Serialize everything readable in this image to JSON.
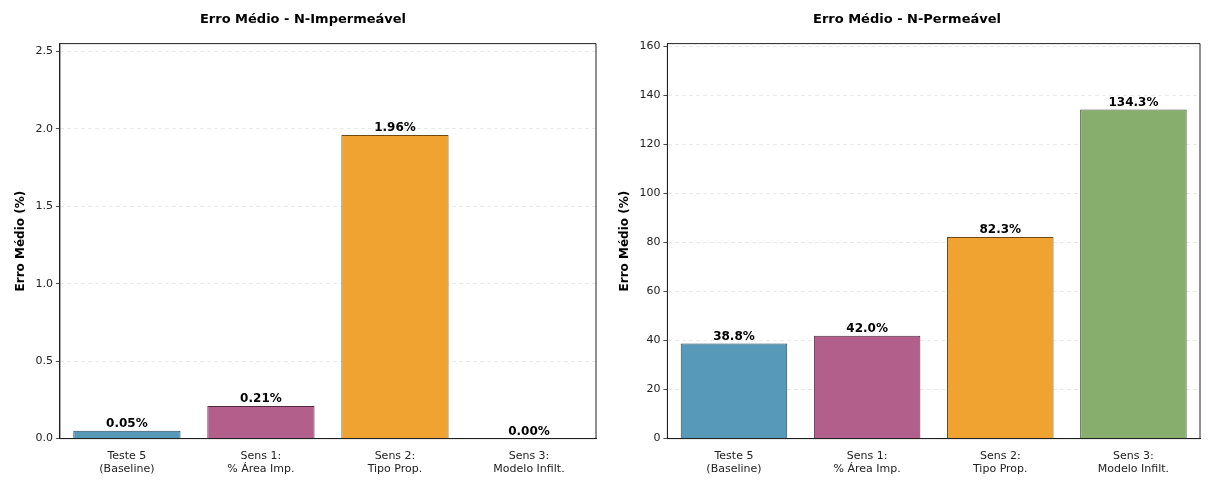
{
  "chart_data": [
    {
      "type": "bar",
      "title": "Erro Médio - N-Impermeável",
      "ylabel": "Erro Médio (%)",
      "categories": [
        "Teste 5\n(Baseline)",
        "Sens 1:\n% Área Imp.",
        "Sens 2:\nTipo Prop.",
        "Sens 3:\nModelo Infilt."
      ],
      "values": [
        0.05,
        0.21,
        1.96,
        0.0
      ],
      "colors": [
        "#5799b9",
        "#b25f8b",
        "#f0a330",
        "#88ae6e"
      ],
      "value_labels": [
        "0.05%",
        "0.21%",
        "1.96%",
        "0.00%"
      ],
      "ylim": [
        0,
        2.55
      ],
      "yticks": [
        {
          "value": 0,
          "label": "0.0"
        },
        {
          "value": 0.5,
          "label": "0.5"
        },
        {
          "value": 1,
          "label": "1.0"
        },
        {
          "value": 1.5,
          "label": "1.5"
        },
        {
          "value": 2,
          "label": "2.0"
        },
        {
          "value": 2.5,
          "label": "2.5"
        }
      ],
      "grid": "y",
      "legend": false
    },
    {
      "type": "bar",
      "title": "Erro Médio - N-Permeável",
      "ylabel": "Erro Médio (%)",
      "categories": [
        "Teste 5\n(Baseline)",
        "Sens 1:\n% Área Imp.",
        "Sens 2:\nTipo Prop.",
        "Sens 3:\nModelo Infilt."
      ],
      "values": [
        38.8,
        42.0,
        82.3,
        134.3
      ],
      "colors": [
        "#5799b9",
        "#b25f8b",
        "#f0a330",
        "#88ae6e"
      ],
      "value_labels": [
        "38.8%",
        "42.0%",
        "82.3%",
        "134.3%"
      ],
      "ylim": [
        0,
        161.2
      ],
      "yticks": [
        0,
        20,
        40,
        60,
        80,
        100,
        120,
        140,
        160
      ],
      "grid": "y",
      "legend": false
    }
  ]
}
